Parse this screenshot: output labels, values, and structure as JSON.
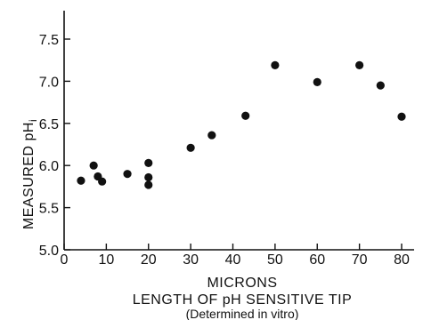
{
  "chart_data": {
    "type": "scatter",
    "title": "",
    "xlabel": "MICRONS",
    "xlabel_line2": "LENGTH OF pH SENSITIVE TIP",
    "xlabel_line3": "(Determined in vitro)",
    "ylabel_main": "MEASURED pH",
    "ylabel_sub": "i",
    "xlim": [
      0,
      80
    ],
    "ylim": [
      5.0,
      7.5
    ],
    "xticks": [
      0,
      10,
      20,
      30,
      40,
      50,
      60,
      70,
      80
    ],
    "yticks": [
      5.0,
      5.5,
      6.0,
      6.5,
      7.0,
      7.5
    ],
    "ytick_labels": [
      "5.0",
      "5.5",
      "6.0",
      "6.5",
      "7.0",
      "7.5"
    ],
    "grid": false,
    "legend": "none",
    "colors": {
      "ink": "#111111",
      "background": "#ffffff"
    },
    "points": [
      {
        "x": 4,
        "y": 5.82
      },
      {
        "x": 7,
        "y": 6.0
      },
      {
        "x": 8,
        "y": 5.87
      },
      {
        "x": 9,
        "y": 5.81
      },
      {
        "x": 15,
        "y": 5.9
      },
      {
        "x": 20,
        "y": 6.03
      },
      {
        "x": 20,
        "y": 5.86
      },
      {
        "x": 20,
        "y": 5.77
      },
      {
        "x": 30,
        "y": 6.21
      },
      {
        "x": 35,
        "y": 6.36
      },
      {
        "x": 43,
        "y": 6.59
      },
      {
        "x": 50,
        "y": 7.19
      },
      {
        "x": 60,
        "y": 6.99
      },
      {
        "x": 70,
        "y": 7.19
      },
      {
        "x": 75,
        "y": 6.95
      },
      {
        "x": 80,
        "y": 6.58
      }
    ]
  }
}
